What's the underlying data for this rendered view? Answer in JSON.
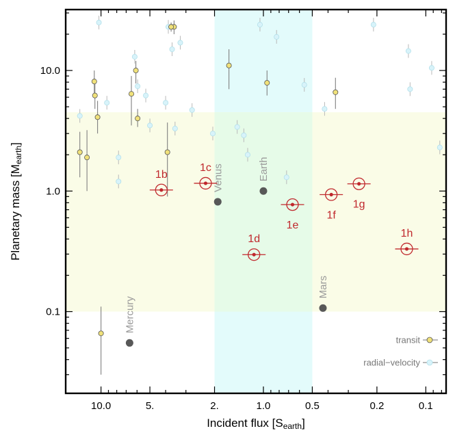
{
  "chart_data": {
    "type": "scatter",
    "xlabel": "Incident flux [S",
    "xlabel_sub": "earth",
    "xlabel_end": "]",
    "ylabel": "Planetary mass [M",
    "ylabel_sub": "earth",
    "ylabel_end": "]",
    "x_scale": "log-reversed",
    "y_scale": "log",
    "xlim": [
      16.5,
      0.075
    ],
    "ylim": [
      0.021,
      32
    ],
    "x_ticks": [
      {
        "value": 10,
        "label": "10.0"
      },
      {
        "value": 5,
        "label": "5."
      },
      {
        "value": 2,
        "label": "2."
      },
      {
        "value": 1,
        "label": "1.0"
      },
      {
        "value": 0.5,
        "label": "0.5"
      },
      {
        "value": 0.2,
        "label": "0.2"
      },
      {
        "value": 0.1,
        "label": "0.1"
      }
    ],
    "y_ticks": [
      {
        "value": 10,
        "label": "10.0"
      },
      {
        "value": 1,
        "label": "1.0"
      },
      {
        "value": 0.1,
        "label": "0.1"
      }
    ],
    "regions": [
      {
        "kind": "habitable-zone",
        "flux_range": [
          2.0,
          0.5
        ],
        "color": "#e3fbfb"
      },
      {
        "kind": "mass-band",
        "mass_range": [
          0.1,
          4.5
        ],
        "color": "#f9fbe3"
      }
    ],
    "legend": {
      "placement": "bottom-right",
      "entries": [
        {
          "label": "transit",
          "color": "#f0e17a"
        },
        {
          "label": "radial−velocity",
          "color": "#d8f3fa"
        }
      ]
    },
    "solar_system": [
      {
        "name": "Mercury",
        "flux": 6.67,
        "mass": 0.055
      },
      {
        "name": "Venus",
        "flux": 1.91,
        "mass": 0.815
      },
      {
        "name": "Earth",
        "flux": 1.0,
        "mass": 1.0
      },
      {
        "name": "Mars",
        "flux": 0.43,
        "mass": 0.107
      }
    ],
    "trappist": [
      {
        "name": "1b",
        "flux": 4.25,
        "mass": 1.02
      },
      {
        "name": "1c",
        "flux": 2.27,
        "mass": 1.16
      },
      {
        "name": "1d",
        "flux": 1.143,
        "mass": 0.297
      },
      {
        "name": "1e",
        "flux": 0.662,
        "mass": 0.772
      },
      {
        "name": "1f",
        "flux": 0.382,
        "mass": 0.934
      },
      {
        "name": "1g",
        "flux": 0.258,
        "mass": 1.148
      },
      {
        "name": "1h",
        "flux": 0.131,
        "mass": 0.331
      }
    ],
    "transit": [
      {
        "flux": 13.5,
        "mass": 2.1,
        "lo": 1.3,
        "hi": 3.1
      },
      {
        "flux": 12.2,
        "mass": 1.9,
        "lo": 1.0,
        "hi": 3.2
      },
      {
        "flux": 11.0,
        "mass": 8.1,
        "lo": 6.3,
        "hi": 10.0
      },
      {
        "flux": 10.9,
        "mass": 6.2,
        "lo": 4.8,
        "hi": 7.8
      },
      {
        "flux": 10.5,
        "mass": 4.1,
        "lo": 3.0,
        "hi": 5.6
      },
      {
        "flux": 10.0,
        "mass": 0.066,
        "lo": 0.03,
        "hi": 0.11
      },
      {
        "flux": 6.5,
        "mass": 6.4,
        "lo": 3.5,
        "hi": 9.0
      },
      {
        "flux": 6.1,
        "mass": 10.0,
        "lo": 7.8,
        "hi": 12.0
      },
      {
        "flux": 5.95,
        "mass": 4.0,
        "lo": 3.4,
        "hi": 4.8
      },
      {
        "flux": 3.9,
        "mass": 2.1,
        "lo": 0.9,
        "hi": 3.7
      },
      {
        "flux": 3.55,
        "mass": 23.0,
        "lo": 20.0,
        "hi": 26.0
      },
      {
        "flux": 3.7,
        "mass": 23.0,
        "lo": 21.0,
        "hi": 25.0
      },
      {
        "flux": 1.63,
        "mass": 11.0,
        "lo": 7.0,
        "hi": 15.0
      },
      {
        "flux": 0.95,
        "mass": 7.9,
        "lo": 6.2,
        "hi": 10.0
      },
      {
        "flux": 0.36,
        "mass": 6.6,
        "lo": 4.8,
        "hi": 8.7
      }
    ],
    "radial_velocity": [
      {
        "flux": 10.3,
        "mass": 25.0
      },
      {
        "flux": 13.5,
        "mass": 4.2
      },
      {
        "flux": 9.2,
        "mass": 5.4
      },
      {
        "flux": 7.8,
        "mass": 1.9
      },
      {
        "flux": 7.8,
        "mass": 1.2
      },
      {
        "flux": 6.2,
        "mass": 13.0
      },
      {
        "flux": 5.95,
        "mass": 7.4
      },
      {
        "flux": 5.3,
        "mass": 6.2
      },
      {
        "flux": 5.0,
        "mass": 3.5
      },
      {
        "flux": 4.0,
        "mass": 5.4
      },
      {
        "flux": 3.85,
        "mass": 23.0
      },
      {
        "flux": 3.65,
        "mass": 15.0
      },
      {
        "flux": 3.5,
        "mass": 3.3
      },
      {
        "flux": 3.25,
        "mass": 17.0
      },
      {
        "flux": 2.75,
        "mass": 4.7
      },
      {
        "flux": 2.05,
        "mass": 3.0
      },
      {
        "flux": 1.45,
        "mass": 3.4
      },
      {
        "flux": 1.32,
        "mass": 2.9
      },
      {
        "flux": 1.25,
        "mass": 2.0
      },
      {
        "flux": 1.05,
        "mass": 24.0
      },
      {
        "flux": 0.83,
        "mass": 19.0
      },
      {
        "flux": 0.72,
        "mass": 1.3
      },
      {
        "flux": 0.56,
        "mass": 7.6
      },
      {
        "flux": 0.42,
        "mass": 4.8
      },
      {
        "flux": 0.21,
        "mass": 24.0
      },
      {
        "flux": 0.128,
        "mass": 14.5
      },
      {
        "flux": 0.125,
        "mass": 7.0
      },
      {
        "flux": 0.092,
        "mass": 10.5
      },
      {
        "flux": 0.082,
        "mass": 2.3
      }
    ]
  }
}
